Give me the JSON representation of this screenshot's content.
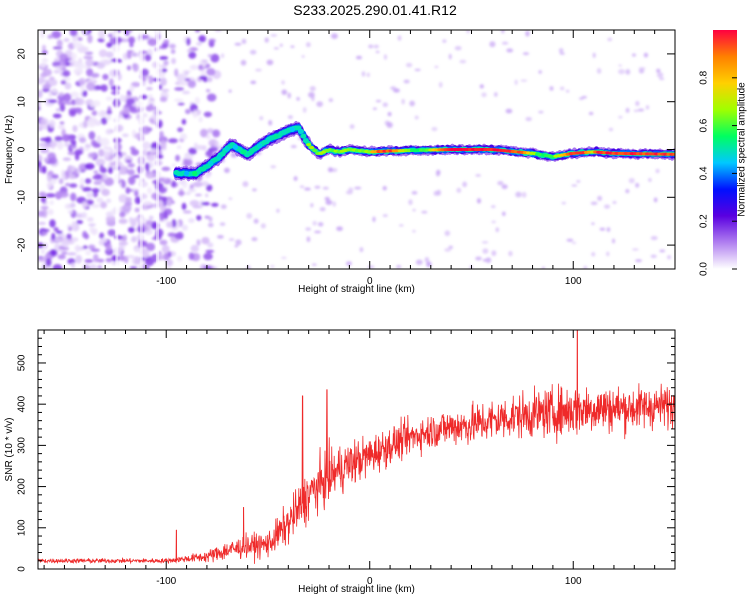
{
  "title": "S233.2025.290.01.41.R12",
  "chart_data": [
    {
      "type": "heatmap",
      "title": "S233.2025.290.01.41.R12",
      "xlabel": "Height of straight line (km)",
      "ylabel": "Frequency (Hz)",
      "xlim": [
        -163,
        150
      ],
      "ylim": [
        -25,
        25
      ],
      "x_ticks": [
        -100,
        0,
        100
      ],
      "y_ticks": [
        -20,
        -10,
        0,
        10,
        20
      ],
      "colorbar": {
        "label": "Normalized spectral amplitude",
        "range": [
          0,
          1
        ],
        "ticks": [
          0.0,
          0.2,
          0.4,
          0.6,
          0.8
        ],
        "colors": [
          "#ffffff",
          "#b07ff0",
          "#5a00e0",
          "#0010ff",
          "#00c8ff",
          "#00ff60",
          "#a0ff00",
          "#ffd000",
          "#ff8000",
          "#ff0040"
        ]
      },
      "dominant_frequency_track": {
        "x": [
          -95,
          -85,
          -75,
          -68,
          -60,
          -50,
          -45,
          -40,
          -35,
          -30,
          -25,
          -20,
          -15,
          -10,
          0,
          10,
          20,
          40,
          60,
          80,
          90,
          100,
          110,
          120,
          150
        ],
        "y": [
          -5,
          -5,
          -2,
          1,
          -1,
          2,
          3,
          4,
          4.5,
          1,
          -1,
          0,
          -0.5,
          0,
          -0.5,
          -0.3,
          -0.2,
          0,
          0,
          -0.8,
          -1.5,
          -0.8,
          -0.5,
          -0.8,
          -1
        ]
      },
      "noise_region_x": [
        -163,
        -85
      ]
    },
    {
      "type": "line",
      "xlabel": "Height of straight line (km)",
      "ylabel": "SNR (10 * v/v)",
      "xlim": [
        -163,
        150
      ],
      "ylim": [
        0,
        580
      ],
      "x_ticks": [
        -100,
        0,
        100
      ],
      "y_ticks": [
        0,
        100,
        200,
        300,
        400,
        500
      ],
      "color": "#ef2a2a",
      "envelope": {
        "x": [
          -163,
          -140,
          -120,
          -100,
          -90,
          -80,
          -70,
          -60,
          -50,
          -40,
          -30,
          -20,
          -10,
          0,
          10,
          20,
          30,
          40,
          50,
          60,
          70,
          80,
          90,
          100,
          110,
          120,
          130,
          140,
          150
        ],
        "mean": [
          20,
          20,
          20,
          20,
          25,
          30,
          45,
          55,
          60,
          110,
          180,
          225,
          255,
          275,
          300,
          320,
          335,
          345,
          350,
          360,
          370,
          375,
          380,
          385,
          390,
          390,
          390,
          395,
          395
        ],
        "spread": [
          8,
          8,
          8,
          8,
          12,
          20,
          35,
          40,
          45,
          70,
          90,
          90,
          80,
          70,
          65,
          60,
          60,
          65,
          70,
          75,
          75,
          80,
          85,
          90,
          85,
          80,
          75,
          75,
          70
        ]
      },
      "spikes": [
        {
          "x": -95,
          "y": 95
        },
        {
          "x": -62,
          "y": 150
        },
        {
          "x": -33,
          "y": 420
        },
        {
          "x": -21,
          "y": 435
        },
        {
          "x": 102,
          "y": 580
        }
      ]
    }
  ]
}
